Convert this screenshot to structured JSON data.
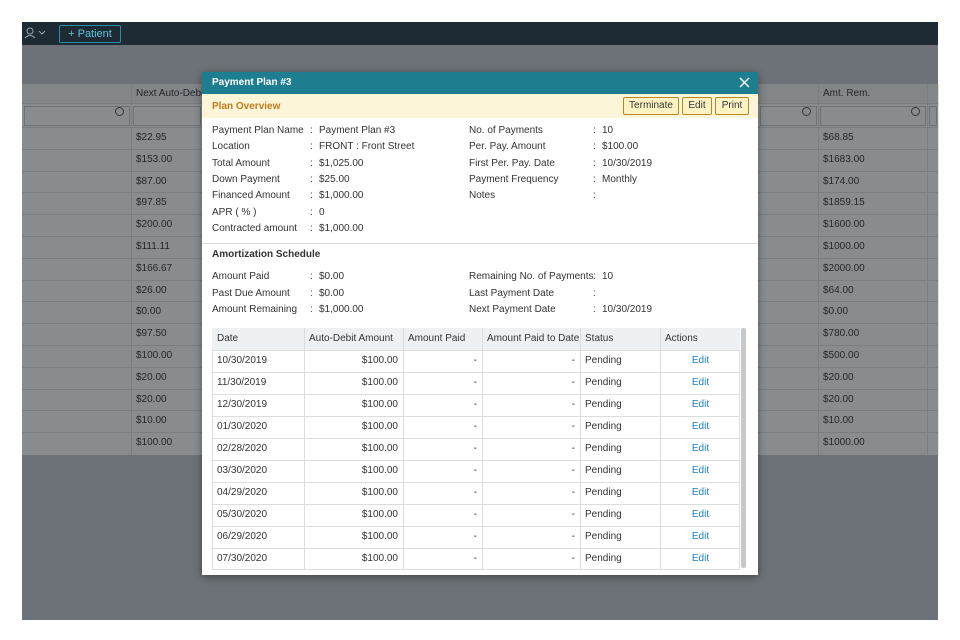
{
  "topbar": {
    "add_patient": "+ Patient"
  },
  "background_table": {
    "columns": [
      "Next Auto-Debit",
      "Amt. Rem."
    ],
    "next_auto_debit": [
      "$22.95",
      "$153.00",
      "$87.00",
      "$97.85",
      "$200.00",
      "$111.11",
      "$166.67",
      "$26.00",
      "$0.00",
      "$97.50",
      "$100.00",
      "$20.00",
      "$20.00",
      "$10.00",
      "$100.00"
    ],
    "amt_rem": [
      "$68.85",
      "$1683.00",
      "$174.00",
      "$1859.15",
      "$1600.00",
      "$1000.00",
      "$2000.00",
      "$64.00",
      "$0.00",
      "$780.00",
      "$500.00",
      "$20.00",
      "$20.00",
      "$10.00",
      "$1000.00"
    ]
  },
  "modal": {
    "title": "Payment Plan #3",
    "overview_title": "Plan Overview",
    "buttons": [
      "Terminate",
      "Edit",
      "Print"
    ],
    "separator": ":",
    "details_left": [
      {
        "label": "Payment Plan Name",
        "value": "Payment Plan #3"
      },
      {
        "label": "Location",
        "value": "FRONT : Front Street"
      },
      {
        "label": "Total Amount",
        "value": "$1,025.00"
      },
      {
        "label": "Down Payment",
        "value": "$25.00"
      },
      {
        "label": "Financed Amount",
        "value": "$1,000.00"
      },
      {
        "label": "APR ( % )",
        "value": "0"
      },
      {
        "label": "Contracted amount",
        "value": "$1,000.00"
      }
    ],
    "details_right": [
      {
        "label": "No. of Payments",
        "value": "10"
      },
      {
        "label": "Per. Pay. Amount",
        "value": "$100.00"
      },
      {
        "label": "First Per. Pay. Date",
        "value": "10/30/2019"
      },
      {
        "label": "Payment Frequency",
        "value": "Monthly"
      },
      {
        "label": "Notes"
      }
    ],
    "amortization_title": "Amortization Schedule",
    "summary_left": [
      {
        "label": "Amount Paid",
        "value": "$0.00"
      },
      {
        "label": "Past Due Amount",
        "value": "$0.00"
      },
      {
        "label": "Amount Remaining",
        "value": "$1,000.00"
      }
    ],
    "summary_right": [
      {
        "label": "Remaining No. of Payments",
        "value": "10"
      },
      {
        "label": "Last Payment Date"
      },
      {
        "label": "Next Payment Date",
        "value": "10/30/2019"
      }
    ],
    "schedule": {
      "headers": [
        "Date",
        "Auto-Debit Amount",
        "Amount Paid",
        "Amount Paid to Date",
        "Status",
        "Actions"
      ],
      "rows": [
        [
          "10/30/2019",
          "$100.00",
          "-",
          "-",
          "Pending",
          "Edit"
        ],
        [
          "11/30/2019",
          "$100.00",
          "-",
          "-",
          "Pending",
          "Edit"
        ],
        [
          "12/30/2019",
          "$100.00",
          "-",
          "-",
          "Pending",
          "Edit"
        ],
        [
          "01/30/2020",
          "$100.00",
          "-",
          "-",
          "Pending",
          "Edit"
        ],
        [
          "02/28/2020",
          "$100.00",
          "-",
          "-",
          "Pending",
          "Edit"
        ],
        [
          "03/30/2020",
          "$100.00",
          "-",
          "-",
          "Pending",
          "Edit"
        ],
        [
          "04/29/2020",
          "$100.00",
          "-",
          "-",
          "Pending",
          "Edit"
        ],
        [
          "05/30/2020",
          "$100.00",
          "-",
          "-",
          "Pending",
          "Edit"
        ],
        [
          "06/29/2020",
          "$100.00",
          "-",
          "-",
          "Pending",
          "Edit"
        ],
        [
          "07/30/2020",
          "$100.00",
          "-",
          "-",
          "Pending",
          "Edit"
        ]
      ]
    }
  }
}
